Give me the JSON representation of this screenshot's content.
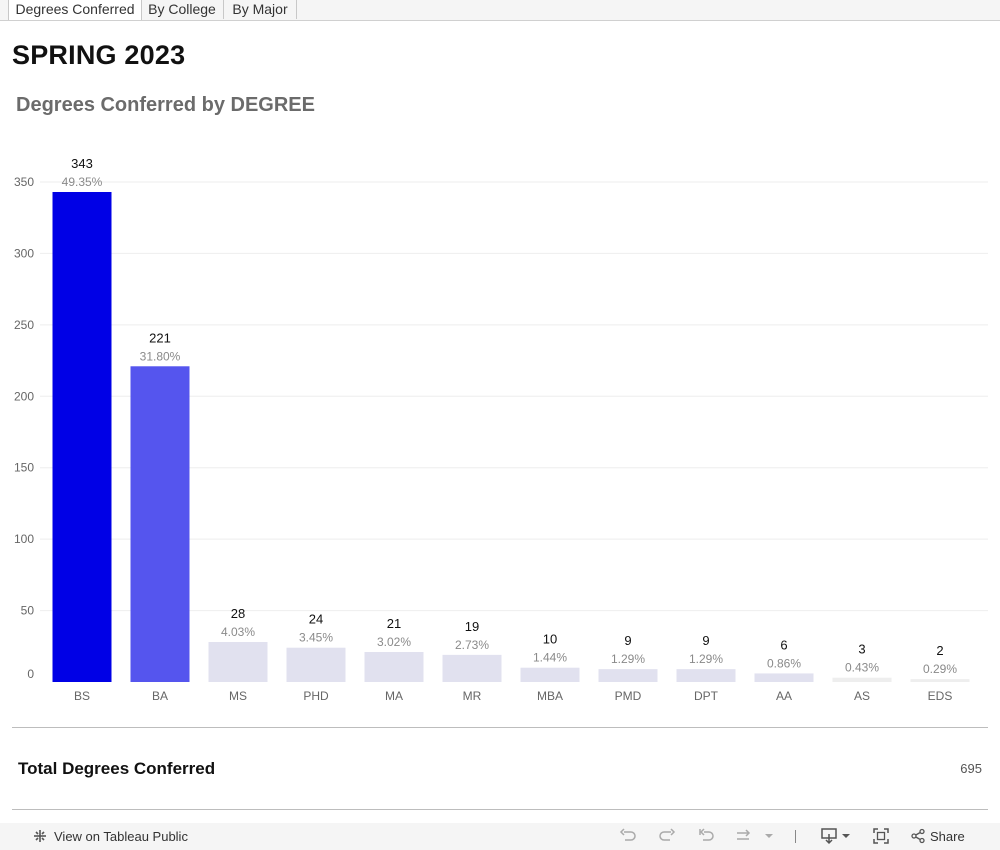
{
  "tabs": [
    {
      "label": "Degrees Conferred"
    },
    {
      "label": "By College"
    },
    {
      "label": "By Major"
    }
  ],
  "page_title": "SPRING 2023",
  "colors": {
    "bar_high": "#0000e6",
    "bar_mid": "#5555ee",
    "bar_low": "#e1e1ef",
    "bar_min": "#eeeeee",
    "grid": "#eeeeee",
    "value_label": "#111111",
    "pct_label": "#8a8a8a",
    "axis_text": "#666666"
  },
  "chart_data": {
    "type": "bar",
    "title": "Degrees Conferred by DEGREE",
    "xlabel": "",
    "ylabel": "",
    "ylim": [
      0,
      350
    ],
    "yticks": [
      0,
      50,
      100,
      150,
      200,
      250,
      300,
      350
    ],
    "categories": [
      "BS",
      "BA",
      "MS",
      "PHD",
      "MA",
      "MR",
      "MBA",
      "PMD",
      "DPT",
      "AA",
      "AS",
      "EDS"
    ],
    "values": [
      343,
      221,
      28,
      24,
      21,
      19,
      10,
      9,
      9,
      6,
      3,
      2
    ],
    "percent_labels": [
      "49.35%",
      "31.80%",
      "4.03%",
      "3.45%",
      "3.02%",
      "2.73%",
      "1.44%",
      "1.29%",
      "1.29%",
      "0.86%",
      "0.43%",
      "0.29%"
    ]
  },
  "totals": {
    "label": "Total Degrees Conferred",
    "value": "695"
  },
  "footer": {
    "tableau_link": "View on Tableau Public",
    "share_label": "Share"
  }
}
